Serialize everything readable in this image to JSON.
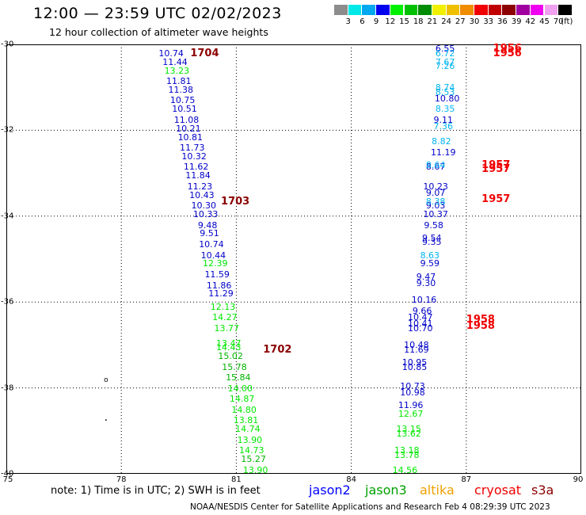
{
  "header": {
    "title": "12:00 — 23:59 UTC 02/02/2023",
    "subtitle": "12 hour collection of altimeter wave heights"
  },
  "colorbar": {
    "unit": "(ft)",
    "colors": [
      "#8c8c8c",
      "#00e8e8",
      "#00a8f0",
      "#0000f0",
      "#00f000",
      "#00c000",
      "#008c00",
      "#f0f000",
      "#f0c000",
      "#f08c00",
      "#f00000",
      "#c00000",
      "#8c0000",
      "#a000a0",
      "#f000f0",
      "#f0a0f0",
      "#000000"
    ],
    "labels": [
      "3",
      "6",
      "9",
      "12",
      "15",
      "18",
      "21",
      "24",
      "27",
      "30",
      "33",
      "36",
      "39",
      "42",
      "45",
      "70"
    ]
  },
  "map": {
    "lon_range": [
      75,
      90
    ],
    "lat_range": [
      -30,
      -40
    ],
    "x_ticks": [
      "75",
      "78",
      "81",
      "84",
      "87",
      "90"
    ],
    "y_ticks": [
      "-30",
      "-32",
      "-34",
      "-36",
      "-38",
      "-40"
    ]
  },
  "chart_data": {
    "type": "scatter",
    "title": "12 hour collection of altimeter wave heights",
    "units": "ft",
    "track_times": [
      {
        "label": "1704",
        "lon": 79.8,
        "lat": -30.2
      },
      {
        "label": "1703",
        "lon": 80.6,
        "lat": -33.65
      },
      {
        "label": "1702",
        "lon": 81.7,
        "lat": -37.1
      },
      {
        "label": "1956",
        "lon": 87.7,
        "lat": -30.1
      },
      {
        "label": "1956",
        "lon": 87.7,
        "lat": -30.2
      },
      {
        "label": "1957",
        "lon": 87.4,
        "lat": -32.8
      },
      {
        "label": "1957",
        "lon": 87.4,
        "lat": -32.9
      },
      {
        "label": "1957",
        "lon": 87.4,
        "lat": -33.6
      },
      {
        "label": "1958",
        "lon": 87.0,
        "lat": -36.4
      },
      {
        "label": "1958",
        "lon": 87.0,
        "lat": -36.55
      }
    ],
    "tracks": [
      {
        "color": "#0000c8",
        "points": [
          {
            "lon": 79.3,
            "lat": -30.2,
            "v": "10.74"
          },
          {
            "lon": 79.4,
            "lat": -30.4,
            "v": "11.44"
          },
          {
            "lon": 79.5,
            "lat": -30.85,
            "v": "11.81"
          },
          {
            "lon": 79.55,
            "lat": -31.05,
            "v": "11.38"
          },
          {
            "lon": 79.6,
            "lat": -31.3,
            "v": "10.75"
          },
          {
            "lon": 79.65,
            "lat": -31.5,
            "v": "10.51"
          },
          {
            "lon": 79.7,
            "lat": -31.75,
            "v": "11.08"
          },
          {
            "lon": 79.75,
            "lat": -31.95,
            "v": "10.21"
          },
          {
            "lon": 79.8,
            "lat": -32.15,
            "v": "10.81"
          },
          {
            "lon": 79.85,
            "lat": -32.4,
            "v": "11.73"
          },
          {
            "lon": 79.9,
            "lat": -32.6,
            "v": "10.32"
          },
          {
            "lon": 79.95,
            "lat": -32.85,
            "v": "11.62"
          },
          {
            "lon": 80.0,
            "lat": -33.05,
            "v": "11.84"
          },
          {
            "lon": 80.05,
            "lat": -33.3,
            "v": "11.23"
          },
          {
            "lon": 80.1,
            "lat": -33.5,
            "v": "10.43"
          },
          {
            "lon": 80.15,
            "lat": -33.75,
            "v": "10.30"
          },
          {
            "lon": 80.2,
            "lat": -33.95,
            "v": "10.33"
          },
          {
            "lon": 80.25,
            "lat": -34.2,
            "v": "9.48"
          },
          {
            "lon": 80.3,
            "lat": -34.4,
            "v": "9.51"
          },
          {
            "lon": 80.35,
            "lat": -34.65,
            "v": "10.74"
          },
          {
            "lon": 80.4,
            "lat": -34.9,
            "v": "10.44"
          },
          {
            "lon": 80.5,
            "lat": -35.35,
            "v": "11.59"
          },
          {
            "lon": 80.55,
            "lat": -35.6,
            "v": "11.86"
          },
          {
            "lon": 80.6,
            "lat": -35.8,
            "v": "11.29"
          },
          {
            "lon": 86.2,
            "lat": -32.85,
            "v": "8.67"
          },
          {
            "lon": 86.45,
            "lat": -30.1,
            "v": "6.55"
          },
          {
            "lon": 86.5,
            "lat": -31.25,
            "v": "10.80"
          },
          {
            "lon": 86.4,
            "lat": -31.75,
            "v": "9.11"
          },
          {
            "lon": 86.4,
            "lat": -32.5,
            "v": "11.19"
          },
          {
            "lon": 86.2,
            "lat": -33.3,
            "v": "10.23"
          },
          {
            "lon": 86.2,
            "lat": -33.45,
            "v": "9.07"
          },
          {
            "lon": 86.2,
            "lat": -33.75,
            "v": "9.03"
          },
          {
            "lon": 86.2,
            "lat": -33.95,
            "v": "10.37"
          },
          {
            "lon": 86.15,
            "lat": -34.2,
            "v": "9.58"
          },
          {
            "lon": 86.1,
            "lat": -34.5,
            "v": "9.54"
          },
          {
            "lon": 86.1,
            "lat": -34.6,
            "v": "9.35"
          },
          {
            "lon": 86.05,
            "lat": -35.1,
            "v": "9.59"
          },
          {
            "lon": 85.95,
            "lat": -35.4,
            "v": "9.47"
          },
          {
            "lon": 85.95,
            "lat": -35.55,
            "v": "9.30"
          },
          {
            "lon": 85.9,
            "lat": -35.95,
            "v": "10.16"
          },
          {
            "lon": 85.85,
            "lat": -36.2,
            "v": "9.66"
          },
          {
            "lon": 85.8,
            "lat": -36.35,
            "v": "10.47"
          },
          {
            "lon": 85.8,
            "lat": -36.5,
            "v": "10.41"
          },
          {
            "lon": 85.8,
            "lat": -36.6,
            "v": "10.70"
          },
          {
            "lon": 85.7,
            "lat": -37.0,
            "v": "10.48"
          },
          {
            "lon": 85.7,
            "lat": -37.1,
            "v": "11.69"
          },
          {
            "lon": 85.65,
            "lat": -37.4,
            "v": "10.95"
          },
          {
            "lon": 85.65,
            "lat": -37.5,
            "v": "10.85"
          },
          {
            "lon": 85.6,
            "lat": -37.95,
            "v": "10.73"
          },
          {
            "lon": 85.6,
            "lat": -38.1,
            "v": "10.98"
          },
          {
            "lon": 85.55,
            "lat": -38.4,
            "v": "11.96"
          }
        ]
      },
      {
        "color": "#00b4f0",
        "points": [
          {
            "lon": 86.45,
            "lat": -30.2,
            "v": "6.72"
          },
          {
            "lon": 86.45,
            "lat": -30.4,
            "v": "7.67"
          },
          {
            "lon": 86.45,
            "lat": -30.5,
            "v": "7.26"
          },
          {
            "lon": 86.45,
            "lat": -31.0,
            "v": "8.74"
          },
          {
            "lon": 86.45,
            "lat": -31.1,
            "v": "8.53"
          },
          {
            "lon": 86.45,
            "lat": -31.5,
            "v": "8.35"
          },
          {
            "lon": 86.4,
            "lat": -31.9,
            "v": "7.36"
          },
          {
            "lon": 86.35,
            "lat": -32.25,
            "v": "8.82"
          },
          {
            "lon": 86.2,
            "lat": -32.8,
            "v": "8.64"
          },
          {
            "lon": 86.2,
            "lat": -33.65,
            "v": "8.38"
          },
          {
            "lon": 86.05,
            "lat": -34.9,
            "v": "8.63"
          }
        ]
      },
      {
        "color": "#00e800",
        "points": [
          {
            "lon": 79.45,
            "lat": -30.6,
            "v": "13.23"
          },
          {
            "lon": 80.45,
            "lat": -35.1,
            "v": "12.39"
          },
          {
            "lon": 80.65,
            "lat": -36.1,
            "v": "12.13"
          },
          {
            "lon": 80.7,
            "lat": -36.35,
            "v": "14.27"
          },
          {
            "lon": 80.75,
            "lat": -36.6,
            "v": "13.77"
          },
          {
            "lon": 80.8,
            "lat": -36.95,
            "v": "13.47"
          },
          {
            "lon": 80.8,
            "lat": -37.05,
            "v": "14.43"
          },
          {
            "lon": 81.1,
            "lat": -38.0,
            "v": "14.00"
          },
          {
            "lon": 81.15,
            "lat": -38.25,
            "v": "14.87"
          },
          {
            "lon": 81.2,
            "lat": -38.5,
            "v": "14.80"
          },
          {
            "lon": 81.25,
            "lat": -38.75,
            "v": "13.81"
          },
          {
            "lon": 81.3,
            "lat": -38.95,
            "v": "14.74"
          },
          {
            "lon": 81.35,
            "lat": -39.2,
            "v": "13.90"
          },
          {
            "lon": 81.4,
            "lat": -39.45,
            "v": "14.73"
          },
          {
            "lon": 81.5,
            "lat": -39.9,
            "v": "13.90"
          },
          {
            "lon": 85.55,
            "lat": -38.6,
            "v": "12.67"
          },
          {
            "lon": 85.5,
            "lat": -38.95,
            "v": "13.15"
          },
          {
            "lon": 85.5,
            "lat": -39.05,
            "v": "13.62"
          },
          {
            "lon": 85.45,
            "lat": -39.45,
            "v": "13.18"
          },
          {
            "lon": 85.45,
            "lat": -39.55,
            "v": "13.78"
          },
          {
            "lon": 85.4,
            "lat": -39.9,
            "v": "14.56"
          }
        ]
      },
      {
        "color": "#00b400",
        "points": [
          {
            "lon": 80.85,
            "lat": -37.25,
            "v": "15.02"
          },
          {
            "lon": 80.95,
            "lat": -37.5,
            "v": "15.78"
          },
          {
            "lon": 81.05,
            "lat": -37.75,
            "v": "15.84"
          },
          {
            "lon": 81.45,
            "lat": -39.65,
            "v": "15.27"
          }
        ]
      }
    ],
    "markers": [
      {
        "glyph": "o",
        "lon": 77.6,
        "lat": -37.85
      },
      {
        "glyph": ".",
        "lon": 77.6,
        "lat": -38.7
      }
    ]
  },
  "footer": {
    "note": "note:  1) Time is in UTC;  2) SWH is in feet",
    "satellites": [
      {
        "name": "jason2",
        "color": "#0000ff"
      },
      {
        "name": "jason3",
        "color": "#00a000"
      },
      {
        "name": "altika",
        "color": "#f0a000"
      },
      {
        "name": "cryosat",
        "color": "#f00000"
      },
      {
        "name": "s3a",
        "color": "#8c0000"
      }
    ],
    "credit": "NOAA/NESDIS Center for Satellite Applications and Research    Feb  4 08:29:39 UTC 2023"
  }
}
